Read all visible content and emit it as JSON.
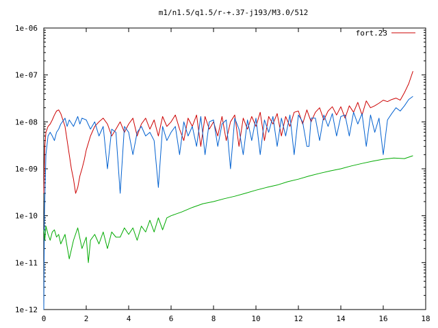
{
  "chart_data": {
    "type": "line",
    "title": "m1/n1.5/q1.5/r-+.37-j193/M3.0/512",
    "xlabel": "",
    "ylabel": "",
    "xlim": [
      0,
      18
    ],
    "ylim": [
      1e-12,
      1e-06
    ],
    "yscale": "log",
    "grid": false,
    "legend": "top-right",
    "x_ticks": [
      "0",
      "2",
      "4",
      "6",
      "8",
      "10",
      "12",
      "14",
      "16",
      "18"
    ],
    "y_ticks": [
      "1e-12",
      "1e-11",
      "1e-10",
      "1e-09",
      "1e-08",
      "1e-07",
      "1e-06"
    ],
    "series": [
      {
        "name": "fort.23",
        "color": "#cc0000",
        "x": [
          0.0,
          0.05,
          0.1,
          0.2,
          0.3,
          0.4,
          0.5,
          0.6,
          0.7,
          0.8,
          0.9,
          1.0,
          1.1,
          1.2,
          1.3,
          1.4,
          1.5,
          1.6,
          1.7,
          1.8,
          1.9,
          2.0,
          2.2,
          2.4,
          2.6,
          2.8,
          3.0,
          3.2,
          3.4,
          3.6,
          3.8,
          4.0,
          4.2,
          4.4,
          4.6,
          4.8,
          5.0,
          5.2,
          5.4,
          5.6,
          5.8,
          6.0,
          6.2,
          6.4,
          6.6,
          6.8,
          7.0,
          7.2,
          7.4,
          7.6,
          7.8,
          8.0,
          8.2,
          8.4,
          8.6,
          8.8,
          9.0,
          9.2,
          9.4,
          9.6,
          9.8,
          10.0,
          10.2,
          10.4,
          10.6,
          10.8,
          11.0,
          11.2,
          11.4,
          11.6,
          11.8,
          12.0,
          12.2,
          12.4,
          12.6,
          12.8,
          13.0,
          13.2,
          13.4,
          13.6,
          13.8,
          14.0,
          14.2,
          14.4,
          14.6,
          14.8,
          15.0,
          15.2,
          15.4,
          15.6,
          15.8,
          16.0,
          16.2,
          16.4,
          16.6,
          16.8,
          17.0,
          17.2,
          17.4
        ],
        "values": [
          3e-10,
          3e-09,
          6e-09,
          8e-09,
          9e-09,
          1.1e-08,
          1.4e-08,
          1.7e-08,
          1.8e-08,
          1.5e-08,
          1.1e-08,
          8e-09,
          4e-09,
          2e-09,
          1e-09,
          6e-10,
          3e-10,
          4e-10,
          7e-10,
          1e-09,
          1.5e-09,
          2.5e-09,
          5e-09,
          8e-09,
          1e-08,
          1.2e-08,
          9e-09,
          5e-09,
          7e-09,
          1e-08,
          6e-09,
          9e-09,
          1.2e-08,
          5e-09,
          9e-09,
          1.2e-08,
          7e-09,
          1.1e-08,
          5e-09,
          1.3e-08,
          8e-09,
          1e-08,
          1.4e-08,
          7e-09,
          4e-09,
          1.2e-08,
          8e-09,
          1.4e-08,
          3e-09,
          1.3e-08,
          7e-09,
          1e-08,
          5e-09,
          1.3e-08,
          4e-09,
          1e-08,
          1.4e-08,
          3e-09,
          1.2e-08,
          7e-09,
          1.3e-08,
          8e-09,
          1.6e-08,
          4e-09,
          1.3e-08,
          9e-09,
          1.5e-08,
          5e-09,
          1.3e-08,
          8e-09,
          1.6e-08,
          1.7e-08,
          9e-09,
          1.8e-08,
          1e-08,
          1.6e-08,
          2e-08,
          1.1e-08,
          1.7e-08,
          2.1e-08,
          1.4e-08,
          2.1e-08,
          1.2e-08,
          2.2e-08,
          1.6e-08,
          2.6e-08,
          1.4e-08,
          2.8e-08,
          2e-08,
          2.2e-08,
          2.5e-08,
          2.9e-08,
          2.7e-08,
          3e-08,
          3.2e-08,
          2.9e-08,
          4.2e-08,
          6.5e-08,
          1.2e-07
        ]
      },
      {
        "color": "#0060d0",
        "x": [
          0.0,
          0.03,
          0.1,
          0.2,
          0.3,
          0.4,
          0.5,
          0.6,
          0.7,
          0.8,
          1.0,
          1.1,
          1.2,
          1.4,
          1.6,
          1.7,
          1.8,
          2.0,
          2.2,
          2.4,
          2.6,
          2.8,
          3.0,
          3.2,
          3.4,
          3.6,
          3.8,
          4.0,
          4.2,
          4.4,
          4.6,
          4.8,
          5.0,
          5.2,
          5.4,
          5.6,
          5.8,
          6.0,
          6.2,
          6.4,
          6.6,
          6.8,
          7.0,
          7.2,
          7.4,
          7.6,
          7.8,
          8.0,
          8.2,
          8.4,
          8.6,
          8.8,
          9.0,
          9.2,
          9.4,
          9.6,
          9.8,
          10.0,
          10.2,
          10.4,
          10.6,
          10.8,
          11.0,
          11.2,
          11.4,
          11.6,
          11.8,
          12.0,
          12.2,
          12.4,
          12.5,
          12.6,
          12.8,
          13.0,
          13.2,
          13.4,
          13.6,
          13.8,
          14.0,
          14.2,
          14.4,
          14.6,
          14.8,
          15.0,
          15.2,
          15.4,
          15.6,
          15.8,
          16.0,
          16.2,
          16.4,
          16.6,
          16.8,
          17.0,
          17.2,
          17.4
        ],
        "values": [
          1e-12,
          1e-10,
          2e-09,
          5e-09,
          6e-09,
          5e-09,
          4e-09,
          6e-09,
          7e-09,
          9e-09,
          1.2e-08,
          8e-09,
          1.1e-08,
          8e-09,
          1.3e-08,
          9e-09,
          1.2e-08,
          1.1e-08,
          7e-09,
          1e-08,
          5e-09,
          8e-09,
          1e-09,
          7e-09,
          6e-09,
          3e-10,
          8e-09,
          6e-09,
          2e-09,
          6e-09,
          8e-09,
          5e-09,
          6e-09,
          4e-09,
          4e-10,
          8e-09,
          4e-09,
          6e-09,
          8e-09,
          2e-09,
          1e-08,
          5e-09,
          8e-09,
          3e-09,
          1.3e-08,
          2e-09,
          1e-08,
          1.1e-08,
          3e-09,
          9e-09,
          1.1e-08,
          1e-09,
          1.2e-08,
          7e-09,
          2e-09,
          1.1e-08,
          4e-09,
          1.2e-08,
          2e-09,
          1.1e-08,
          6e-09,
          1.3e-08,
          3e-09,
          1.2e-08,
          5e-09,
          1.4e-08,
          2e-09,
          1.4e-08,
          1e-08,
          3e-09,
          3e-09,
          1.2e-08,
          1.2e-08,
          4e-09,
          1.4e-08,
          8e-09,
          1.5e-08,
          5e-09,
          1.3e-08,
          1.4e-08,
          5e-09,
          1.6e-08,
          9e-09,
          1.5e-08,
          3e-09,
          1.4e-08,
          6e-09,
          1.2e-08,
          2e-09,
          1.1e-08,
          1.5e-08,
          2e-08,
          1.7e-08,
          2.2e-08,
          3e-08,
          3.5e-08
        ]
      },
      {
        "color": "#00aa00",
        "x": [
          0.0,
          0.05,
          0.1,
          0.2,
          0.3,
          0.4,
          0.5,
          0.6,
          0.7,
          0.8,
          1.0,
          1.2,
          1.4,
          1.6,
          1.8,
          2.0,
          2.1,
          2.2,
          2.4,
          2.6,
          2.8,
          3.0,
          3.2,
          3.4,
          3.6,
          3.8,
          4.0,
          4.2,
          4.4,
          4.6,
          4.8,
          5.0,
          5.2,
          5.4,
          5.6,
          5.8,
          6.0,
          6.5,
          7.0,
          7.5,
          8.0,
          8.5,
          9.0,
          9.5,
          10.0,
          10.5,
          11.0,
          11.5,
          12.0,
          12.5,
          13.0,
          13.5,
          14.0,
          14.5,
          15.0,
          15.5,
          16.0,
          16.5,
          17.0,
          17.4
        ],
        "values": [
          5e-11,
          3e-11,
          6e-11,
          4e-11,
          3e-11,
          4.5e-11,
          5e-11,
          3.5e-11,
          4e-11,
          2.5e-11,
          4e-11,
          1.2e-11,
          3e-11,
          5.5e-11,
          2e-11,
          3.5e-11,
          1e-11,
          3e-11,
          4e-11,
          2.5e-11,
          4.5e-11,
          2e-11,
          4.5e-11,
          3.5e-11,
          3.5e-11,
          5.5e-11,
          4e-11,
          5.5e-11,
          3e-11,
          6e-11,
          4.5e-11,
          8e-11,
          4.5e-11,
          9e-11,
          5e-11,
          9e-11,
          1e-10,
          1.2e-10,
          1.5e-10,
          1.8e-10,
          2e-10,
          2.3e-10,
          2.6e-10,
          3e-10,
          3.5e-10,
          4e-10,
          4.5e-10,
          5.3e-10,
          6e-10,
          7e-10,
          8e-10,
          9e-10,
          1e-09,
          1.15e-09,
          1.3e-09,
          1.45e-09,
          1.6e-09,
          1.7e-09,
          1.65e-09,
          1.9e-09
        ]
      }
    ]
  }
}
